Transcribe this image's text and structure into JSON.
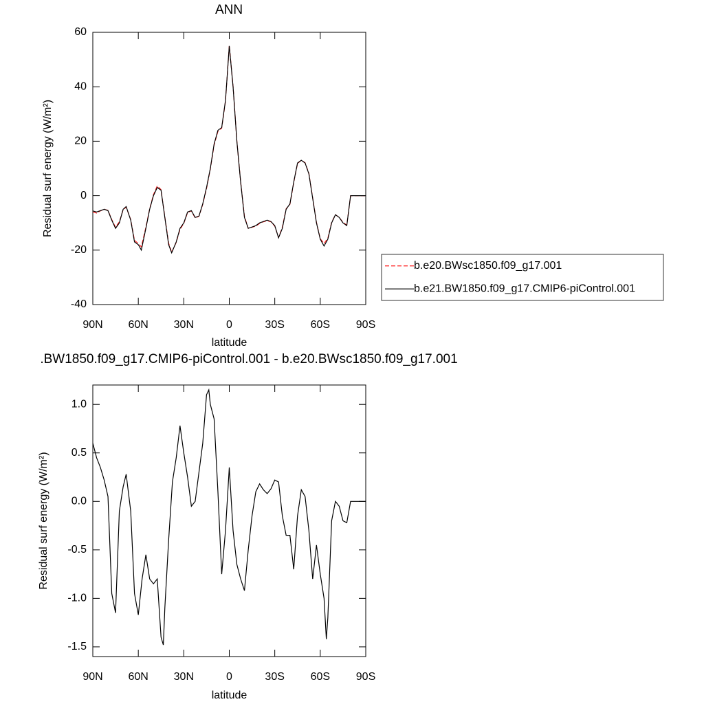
{
  "chart_data": [
    {
      "type": "line",
      "title": "ANN",
      "x_label": "latitude",
      "y_label": "Residual surf energy (W/m²)",
      "xlim": [
        90,
        -90
      ],
      "xticks": [
        {
          "value": 90,
          "label": "90N"
        },
        {
          "value": 60,
          "label": "60N"
        },
        {
          "value": 30,
          "label": "30N"
        },
        0,
        {
          "value": -30,
          "label": "30S"
        },
        {
          "value": -60,
          "label": "60S"
        },
        {
          "value": -90,
          "label": "90S"
        }
      ],
      "ylim": [
        -40,
        60
      ],
      "yticks": [
        -40,
        -20,
        0,
        20,
        40,
        60
      ],
      "legend": "right",
      "x": [
        90,
        87.5,
        85,
        82.5,
        80,
        77.5,
        75,
        72.5,
        70,
        68,
        65,
        62.5,
        60,
        58,
        55,
        52.5,
        50,
        47.5,
        45,
        42.5,
        40,
        38,
        35,
        32.5,
        30,
        27.5,
        25,
        22.5,
        20,
        17.5,
        15,
        12.5,
        10,
        7.5,
        5,
        2.5,
        0,
        -2.5,
        -5,
        -7.5,
        -10,
        -12.5,
        -15,
        -17.5,
        -20,
        -22.5,
        -25,
        -27.5,
        -30,
        -32.5,
        -35,
        -37.5,
        -40,
        -42.5,
        -45,
        -47.5,
        -50,
        -52.5,
        -55,
        -57.5,
        -60,
        -62.5,
        -65,
        -67.5,
        -70,
        -72.5,
        -75,
        -77.5,
        -80,
        -82.5,
        -85,
        -87.5,
        -90
      ],
      "series": [
        {
          "name": "b.e20.BWsc1850.f09_g17.001",
          "color": "#ff2020",
          "dash": "dashed",
          "values": [
            -6,
            -6.4,
            -5.6,
            -5,
            -5.4,
            -8.8,
            -11.6,
            -9.6,
            -5.2,
            -4.2,
            -8.8,
            -16.4,
            -17.6,
            -18.8,
            -11.6,
            -4.8,
            0.4,
            3.6,
            2.2,
            -7.8,
            -17.4,
            -20.8,
            -17.2,
            -12.4,
            -10.2,
            -6.2,
            -5.6,
            -8.2,
            -7.6,
            -3.2,
            2.6,
            9.8,
            18.6,
            23.6,
            24.8,
            34.7,
            55.2,
            40.2,
            20.1,
            5.1,
            -7.6,
            -12,
            -11.6,
            -11.2,
            -10.2,
            -9.6,
            -9.2,
            -9.6,
            -11.2,
            -15.4,
            -11.6,
            -4.8,
            -3.2,
            4.8,
            11.8,
            13,
            12.1,
            8.2,
            -0.8,
            -9.8,
            -15.8,
            -17.6,
            -15.6,
            -9.8,
            -7,
            -8,
            -9.8,
            -10.8,
            0,
            0,
            0,
            0,
            0
          ]
        },
        {
          "name": "b.e21.BW1850.f09_g17.CMIP6-piControl.001",
          "color": "#000000",
          "dash": "solid",
          "values": [
            -5.6,
            -6,
            -5.5,
            -5,
            -5.5,
            -9,
            -12,
            -10,
            -5,
            -4,
            -9,
            -17,
            -18,
            -20,
            -12,
            -5,
            0,
            3,
            2,
            -8,
            -18,
            -21,
            -17,
            -12,
            -10,
            -6,
            -5.5,
            -8,
            -7.5,
            -3,
            3,
            10,
            19,
            24,
            25,
            35,
            55,
            40,
            20,
            5,
            -8,
            -12,
            -11.5,
            -11,
            -10,
            -9.5,
            -9,
            -9.5,
            -11,
            -15.5,
            -12,
            -5,
            -3,
            5,
            12,
            13,
            12,
            8,
            -1,
            -10,
            -16,
            -18.5,
            -16,
            -10,
            -7,
            -8,
            -10,
            -11,
            0,
            0,
            0,
            0,
            0
          ]
        }
      ]
    },
    {
      "type": "line",
      "title": ".BW1850.f09_g17.CMIP6-piControl.001 - b.e20.BWsc1850.f09_g17.001",
      "x_label": "latitude",
      "y_label": "Residual surf energy (W/m²)",
      "xlim": [
        90,
        -90
      ],
      "xticks": [
        {
          "value": 90,
          "label": "90N"
        },
        {
          "value": 60,
          "label": "60N"
        },
        {
          "value": 30,
          "label": "30N"
        },
        0,
        {
          "value": -30,
          "label": "30S"
        },
        {
          "value": -60,
          "label": "60S"
        },
        {
          "value": -90,
          "label": "90S"
        }
      ],
      "ylim": [
        -1.6,
        1.2
      ],
      "yticks": [
        -1.5,
        {
          "value": -1,
          "label": "-1.0"
        },
        -0.5,
        {
          "value": 0,
          "label": "0.0"
        },
        0.5,
        {
          "value": 1,
          "label": "1.0"
        }
      ],
      "x": [
        90,
        87.5,
        85,
        82.5,
        80,
        77.5,
        75,
        72.5,
        70,
        68,
        65,
        62.5,
        60,
        57.5,
        55,
        52.5,
        50,
        47.5,
        45,
        43.5,
        42.5,
        40,
        37.5,
        35,
        32.5,
        30,
        27.5,
        25,
        22.5,
        20,
        17.5,
        15,
        13.5,
        12.5,
        10,
        7.5,
        5,
        2.5,
        0,
        -2.5,
        -5,
        -7.5,
        -10,
        -12.5,
        -15,
        -17.5,
        -20,
        -22.5,
        -25,
        -27.5,
        -30,
        -32.5,
        -35,
        -37.5,
        -40,
        -42.5,
        -45,
        -47.5,
        -50,
        -52.5,
        -55,
        -57.5,
        -60,
        -62.5,
        -64,
        -65,
        -67.5,
        -70,
        -72.5,
        -75,
        -77.5,
        -80,
        -82.5,
        -85,
        -87.5,
        -90
      ],
      "series": [
        {
          "color": "#000000",
          "dash": "solid",
          "values": [
            0.6,
            0.45,
            0.35,
            0.22,
            0.05,
            -0.95,
            -1.15,
            -0.1,
            0.15,
            0.28,
            -0.1,
            -0.95,
            -1.17,
            -0.8,
            -0.55,
            -0.8,
            -0.85,
            -0.8,
            -1.4,
            -1.48,
            -1.1,
            -0.4,
            0.2,
            0.45,
            0.78,
            0.5,
            0.25,
            -0.05,
            0,
            0.3,
            0.6,
            1.1,
            1.15,
            1.0,
            0.85,
            0.1,
            -0.75,
            -0.3,
            0.35,
            -0.3,
            -0.65,
            -0.8,
            -0.92,
            -0.5,
            -0.15,
            0.1,
            0.18,
            0.12,
            0.08,
            0.13,
            0.22,
            0.2,
            -0.15,
            -0.35,
            -0.35,
            -0.7,
            -0.15,
            0.12,
            0.05,
            -0.3,
            -0.8,
            -0.45,
            -0.75,
            -1.0,
            -1.42,
            -1.2,
            -0.2,
            0,
            -0.05,
            -0.2,
            -0.22,
            0,
            0,
            0,
            0,
            0
          ]
        }
      ]
    }
  ]
}
